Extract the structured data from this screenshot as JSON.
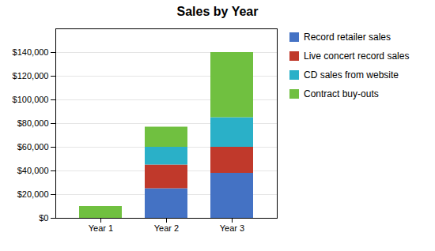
{
  "chart_data": {
    "type": "bar",
    "title": "Sales by Year",
    "categories": [
      "Year 1",
      "Year 2",
      "Year 3"
    ],
    "series": [
      {
        "name": "Record retailer sales",
        "color": "#4472c4",
        "values": [
          0,
          25000,
          38000
        ]
      },
      {
        "name": "Live concert record sales",
        "color": "#c0392b",
        "values": [
          0,
          20000,
          22000
        ]
      },
      {
        "name": "CD sales from website",
        "color": "#2ab0c8",
        "values": [
          0,
          15000,
          25000
        ]
      },
      {
        "name": "Contract buy-outs",
        "color": "#70c040",
        "values": [
          10000,
          17000,
          55000
        ]
      }
    ],
    "stacked": true,
    "ylim": [
      0,
      160000
    ],
    "yticks": [
      {
        "value": 0,
        "label": "$0"
      },
      {
        "value": 20000,
        "label": "$20,000"
      },
      {
        "value": 40000,
        "label": "$40,000"
      },
      {
        "value": 60000,
        "label": "$60,000"
      },
      {
        "value": 80000,
        "label": "$80,000"
      },
      {
        "value": 100000,
        "label": "$100,000"
      },
      {
        "value": 120000,
        "label": "$120,000"
      },
      {
        "value": 140000,
        "label": "$140,000"
      }
    ],
    "grid": true,
    "legend": "right"
  }
}
